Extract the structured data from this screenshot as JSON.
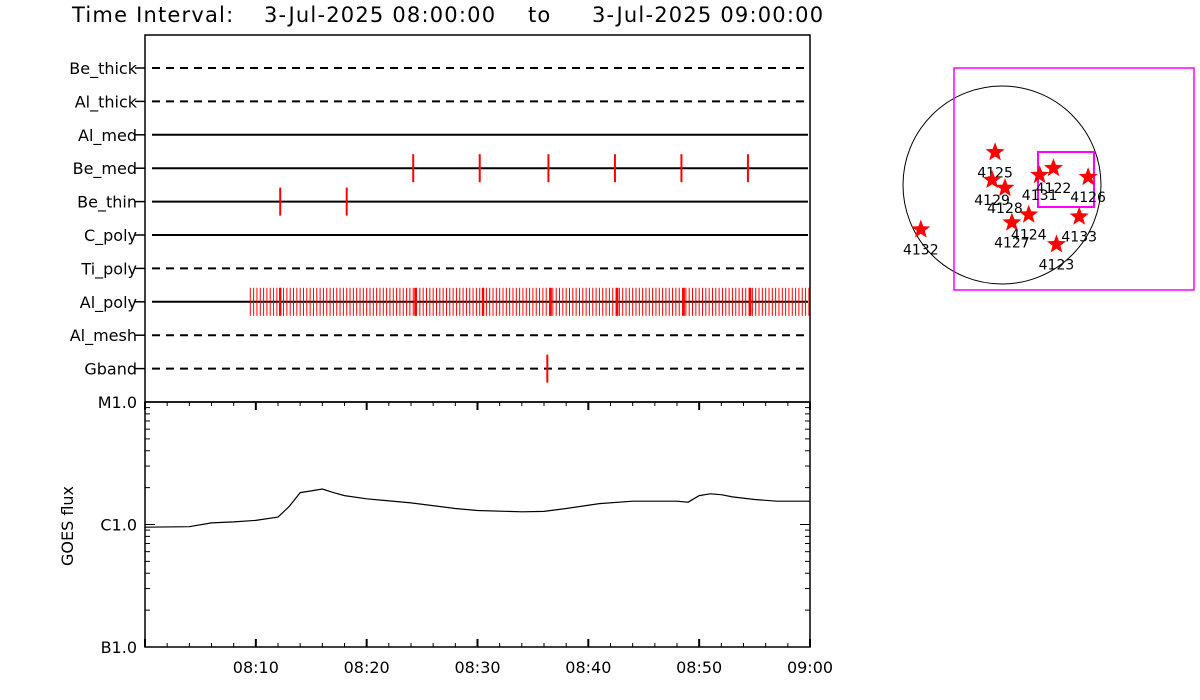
{
  "header": {
    "label": "Time Interval:",
    "start": "3-Jul-2025 08:00:00",
    "to": "to",
    "end": "3-Jul-2025 09:00:00"
  },
  "colors": {
    "event": "#ff0000",
    "region": "#ff00ff",
    "line": "#000000"
  },
  "chart_data": [
    {
      "type": "timeline",
      "x_range_minutes": [
        0,
        60
      ],
      "channels": [
        {
          "name": "Be_thick",
          "style": "dashed",
          "events": []
        },
        {
          "name": "Al_thick",
          "style": "dashed",
          "events": []
        },
        {
          "name": "Al_med",
          "style": "solid",
          "events": []
        },
        {
          "name": "Be_med",
          "style": "solid",
          "events": [
            24.2,
            30.2,
            36.4,
            42.4,
            48.4,
            54.4
          ]
        },
        {
          "name": "Be_thin",
          "style": "solid",
          "events": [
            12.2,
            18.2
          ]
        },
        {
          "name": "C_poly",
          "style": "solid",
          "events": []
        },
        {
          "name": "Ti_poly",
          "style": "dashed",
          "events": []
        },
        {
          "name": "Al_poly",
          "style": "solid",
          "events_range": [
            9.5,
            60
          ],
          "events_step": 0.3,
          "major_events": [
            12.2,
            24.4,
            30.5,
            36.6,
            42.6,
            48.6,
            54.6
          ]
        },
        {
          "name": "Al_mesh",
          "style": "dashed",
          "events": []
        },
        {
          "name": "Gband",
          "style": "dashed",
          "events": [
            36.3
          ]
        }
      ]
    },
    {
      "type": "line",
      "ylabel": "GOES flux",
      "y_scale": "log",
      "y_ticks": [
        "B1.0",
        "C1.0",
        "M1.0"
      ],
      "y_tick_values": [
        1e-07,
        1e-06,
        1e-05
      ],
      "x_tick_labels": [
        "08:10",
        "08:20",
        "08:30",
        "08:40",
        "08:50",
        "09:00"
      ],
      "x_tick_minutes": [
        10,
        20,
        30,
        40,
        50,
        60
      ],
      "series": [
        {
          "x": [
            0,
            4,
            6,
            8,
            10,
            12,
            13,
            14,
            15,
            16,
            17,
            18,
            20,
            24,
            28,
            30,
            34,
            36,
            38,
            41,
            44,
            46,
            48,
            49,
            50,
            51,
            52,
            53,
            55,
            57,
            60
          ],
          "y": [
            9.5e-07,
            9.6e-07,
            1.03e-06,
            1.05e-06,
            1.08e-06,
            1.15e-06,
            1.4e-06,
            1.82e-06,
            1.88e-06,
            1.95e-06,
            1.82e-06,
            1.72e-06,
            1.62e-06,
            1.5e-06,
            1.35e-06,
            1.3e-06,
            1.27e-06,
            1.28e-06,
            1.35e-06,
            1.48e-06,
            1.55e-06,
            1.55e-06,
            1.55e-06,
            1.52e-06,
            1.72e-06,
            1.78e-06,
            1.75e-06,
            1.68e-06,
            1.6e-06,
            1.55e-06,
            1.55e-06
          ]
        }
      ]
    },
    {
      "type": "scatter",
      "description": "solar disk map",
      "regions": [
        {
          "label": "4125",
          "x": -0.07,
          "y": 0.33
        },
        {
          "label": "4129",
          "x": -0.1,
          "y": 0.05
        },
        {
          "label": "4128",
          "x": 0.03,
          "y": -0.03
        },
        {
          "label": "4131",
          "x": 0.38,
          "y": 0.1
        },
        {
          "label": "4122",
          "x": 0.52,
          "y": 0.17
        },
        {
          "label": "4126",
          "x": 0.87,
          "y": 0.08
        },
        {
          "label": "4127",
          "x": 0.1,
          "y": -0.38
        },
        {
          "label": "4124",
          "x": 0.27,
          "y": -0.3
        },
        {
          "label": "4133",
          "x": 0.78,
          "y": -0.32
        },
        {
          "label": "4123",
          "x": 0.55,
          "y": -0.6
        },
        {
          "label": "4132",
          "x": -0.82,
          "y": -0.45
        }
      ]
    }
  ]
}
